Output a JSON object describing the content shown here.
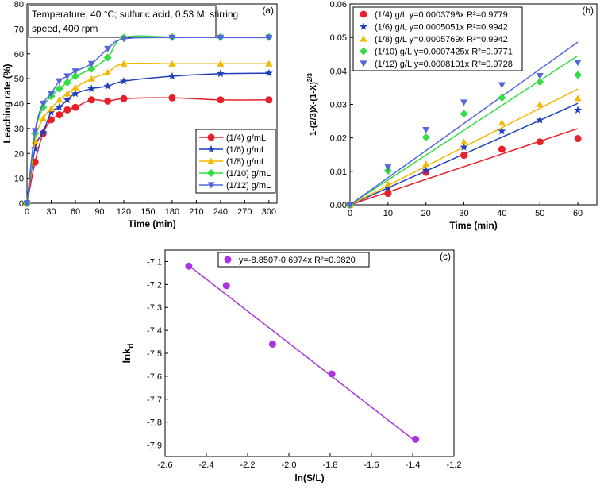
{
  "chart_data": [
    {
      "panel": "(a)",
      "type": "line",
      "annotation": "Temperature, 40 °C; sulfuric acid, 0.53 M; stirring speed, 400 rpm",
      "xlabel": "Time (min)",
      "ylabel": "Leaching rate (%)",
      "xlim": [
        0,
        310
      ],
      "ylim": [
        0,
        80
      ],
      "xticks": [
        0,
        30,
        60,
        90,
        120,
        150,
        180,
        210,
        240,
        270,
        300
      ],
      "yticks": [
        0,
        10,
        20,
        30,
        40,
        50,
        60,
        70,
        80
      ],
      "legend_position": "bottom-right",
      "x": [
        0,
        10,
        20,
        30,
        40,
        50,
        60,
        80,
        100,
        120,
        180,
        240,
        300
      ],
      "series": [
        {
          "name": "(1/4)  g/mL",
          "color": "#e8202a",
          "marker": "circle",
          "values": [
            0,
            16.5,
            28,
            33.5,
            35.5,
            37.5,
            38.5,
            41.5,
            41,
            42,
            42.3,
            41.5,
            41.5
          ]
        },
        {
          "name": "(1/6)  g/mL",
          "color": "#1f3fbf",
          "marker": "star",
          "values": [
            0,
            22,
            28.5,
            36.5,
            38.5,
            41.5,
            44,
            46,
            47,
            49,
            51,
            52,
            52.2
          ]
        },
        {
          "name": "(1/8)  g/mL",
          "color": "#f5b800",
          "marker": "triangle",
          "values": [
            0,
            25,
            34,
            38,
            41.5,
            44,
            46.5,
            50,
            52.5,
            56,
            56,
            56,
            56
          ]
        },
        {
          "name": "(1/10) g/mL",
          "color": "#33dd44",
          "marker": "diamond",
          "values": [
            0,
            28,
            38.5,
            43,
            46,
            48.5,
            51,
            54,
            58.5,
            66.5,
            66.7,
            66.7,
            66.7
          ]
        },
        {
          "name": "(1/12) g/mL",
          "color": "#5566dd",
          "marker": "triangle-down",
          "values": [
            0,
            29,
            40,
            44,
            49,
            51,
            53,
            56,
            62,
            66,
            66.5,
            66.5,
            66.5
          ]
        }
      ]
    },
    {
      "panel": "(b)",
      "type": "scatter",
      "xlabel": "Time (min)",
      "ylabel": "1-(2/3)X-(1-X)^2/3",
      "xlim": [
        0,
        65
      ],
      "ylim": [
        0,
        0.06
      ],
      "xticks": [
        0,
        10,
        20,
        30,
        40,
        50,
        60
      ],
      "yticks": [
        0.0,
        0.01,
        0.02,
        0.03,
        0.04,
        0.05,
        0.06
      ],
      "legend_position": "top-left",
      "x": [
        0,
        10,
        20,
        30,
        40,
        50,
        60
      ],
      "series": [
        {
          "name": "(1/4) g/L y=0.0003798x R²=0.9779",
          "color": "#e8202a",
          "marker": "circle",
          "slope": 0.0003798,
          "values": [
            0,
            0.0034,
            0.0097,
            0.0148,
            0.0166,
            0.0188,
            0.0198
          ]
        },
        {
          "name": "(1/6) g/L y=0.0005051x R²=0.9942",
          "color": "#1f3fbf",
          "marker": "star",
          "slope": 0.0005051,
          "values": [
            0,
            0.005,
            0.0103,
            0.0172,
            0.022,
            0.0253,
            0.0283
          ]
        },
        {
          "name": "(1/8) g/L y=0.0005769x R²=0.9942",
          "color": "#f5b800",
          "marker": "triangle",
          "slope": 0.0005769,
          "values": [
            0,
            0.0062,
            0.0122,
            0.0188,
            0.0245,
            0.03,
            0.0318
          ]
        },
        {
          "name": "(1/10) g/L y=0.0007425x R²=0.9771",
          "color": "#33dd44",
          "marker": "diamond",
          "slope": 0.0007425,
          "values": [
            0,
            0.0102,
            0.0202,
            0.0272,
            0.032,
            0.0367,
            0.0388
          ]
        },
        {
          "name": "(1/12) g/L y=0.0008101x R²=0.9728",
          "color": "#5566dd",
          "marker": "triangle-down",
          "slope": 0.0008101,
          "values": [
            0,
            0.0112,
            0.0224,
            0.0306,
            0.0358,
            0.0385,
            0.0425
          ]
        }
      ]
    },
    {
      "panel": "(c)",
      "type": "scatter",
      "xlabel": "ln(S/L)",
      "ylabel": "lnk",
      "ylabel_sub": "d",
      "xlim": [
        -2.6,
        -1.2
      ],
      "ylim": [
        -7.95,
        -7.05
      ],
      "xticks": [
        -2.6,
        -2.4,
        -2.2,
        -2.0,
        -1.8,
        -1.6,
        -1.4,
        -1.2
      ],
      "yticks": [
        -7.1,
        -7.2,
        -7.3,
        -7.4,
        -7.5,
        -7.6,
        -7.7,
        -7.8,
        -7.9
      ],
      "legend_position": "top-left",
      "series": [
        {
          "name": "y=-8.8507-0.6974x R²=0.9820",
          "color": "#aa33dd",
          "marker": "circle",
          "intercept": -8.8507,
          "slope": -0.6974,
          "x": [
            -2.485,
            -2.303,
            -2.079,
            -1.792,
            -1.386
          ],
          "values": [
            -7.12,
            -7.205,
            -7.46,
            -7.59,
            -7.875
          ]
        }
      ]
    }
  ]
}
